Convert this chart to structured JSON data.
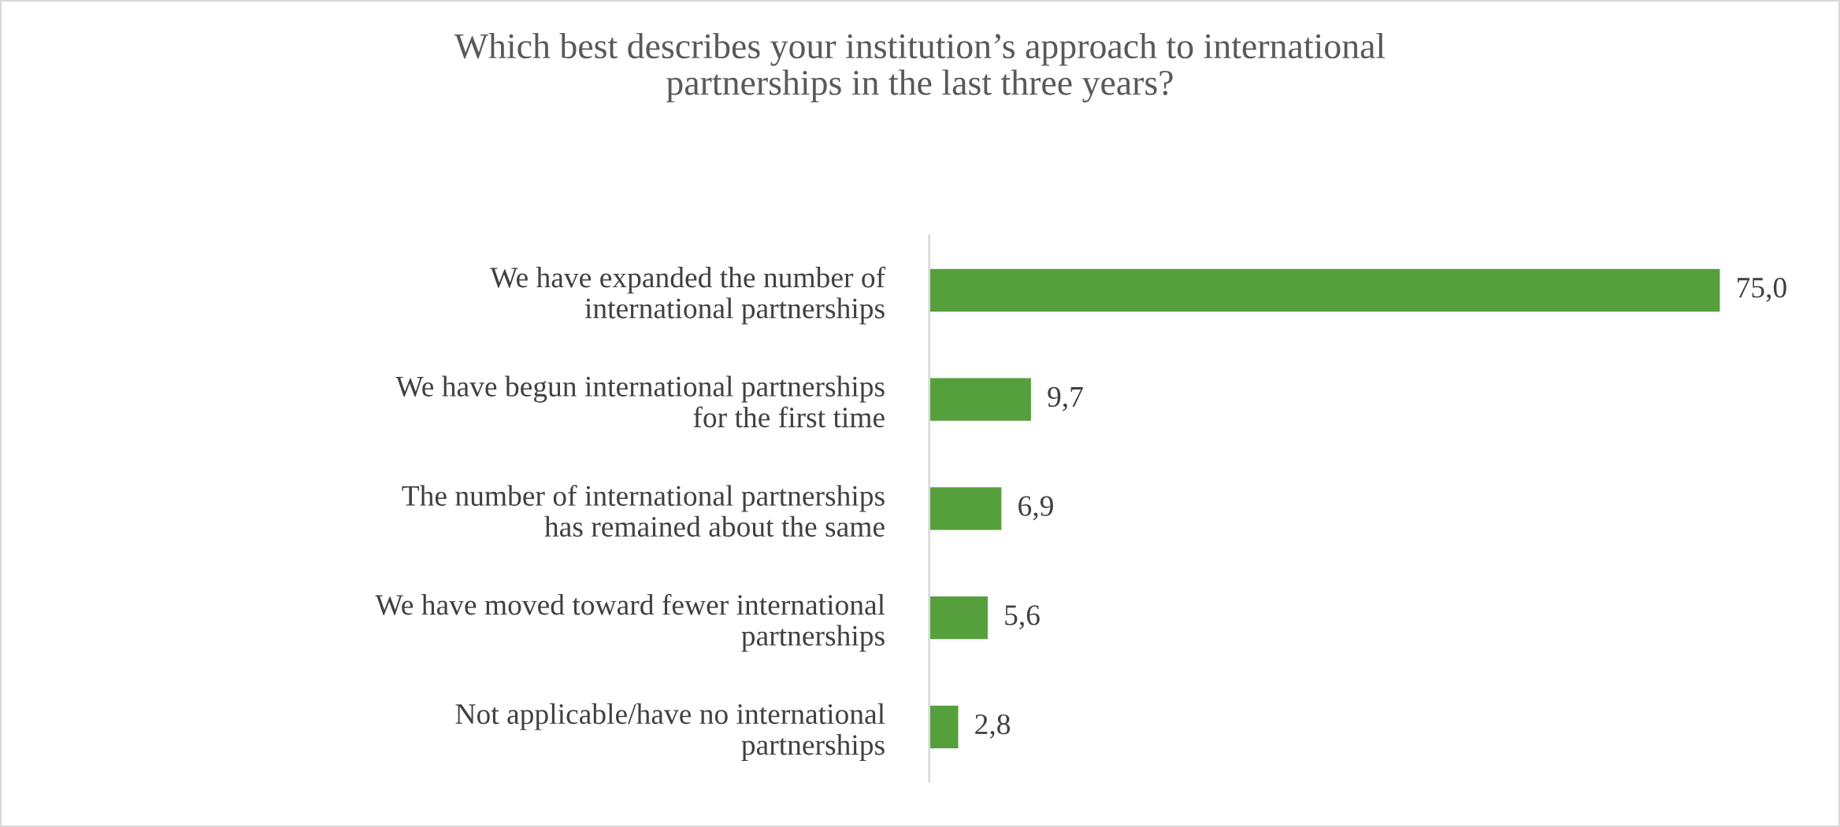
{
  "chart_data": {
    "type": "bar",
    "orientation": "horizontal",
    "title": "Which best describes your institution’s approach to international partnerships in the last three years?",
    "categories": [
      "We have expanded the number of international partnerships",
      "We have begun international partnerships for the first time",
      "The number of international partnerships has remained about the same",
      "We have moved toward fewer international partnerships",
      "Not applicable/have no international partnerships"
    ],
    "values": [
      75.0,
      9.7,
      6.9,
      5.6,
      2.8
    ],
    "value_labels": [
      "75,0",
      "9,7",
      "6,9",
      "5,6",
      "2,8"
    ],
    "color": "#55a03c",
    "grid": false,
    "legend": false
  }
}
